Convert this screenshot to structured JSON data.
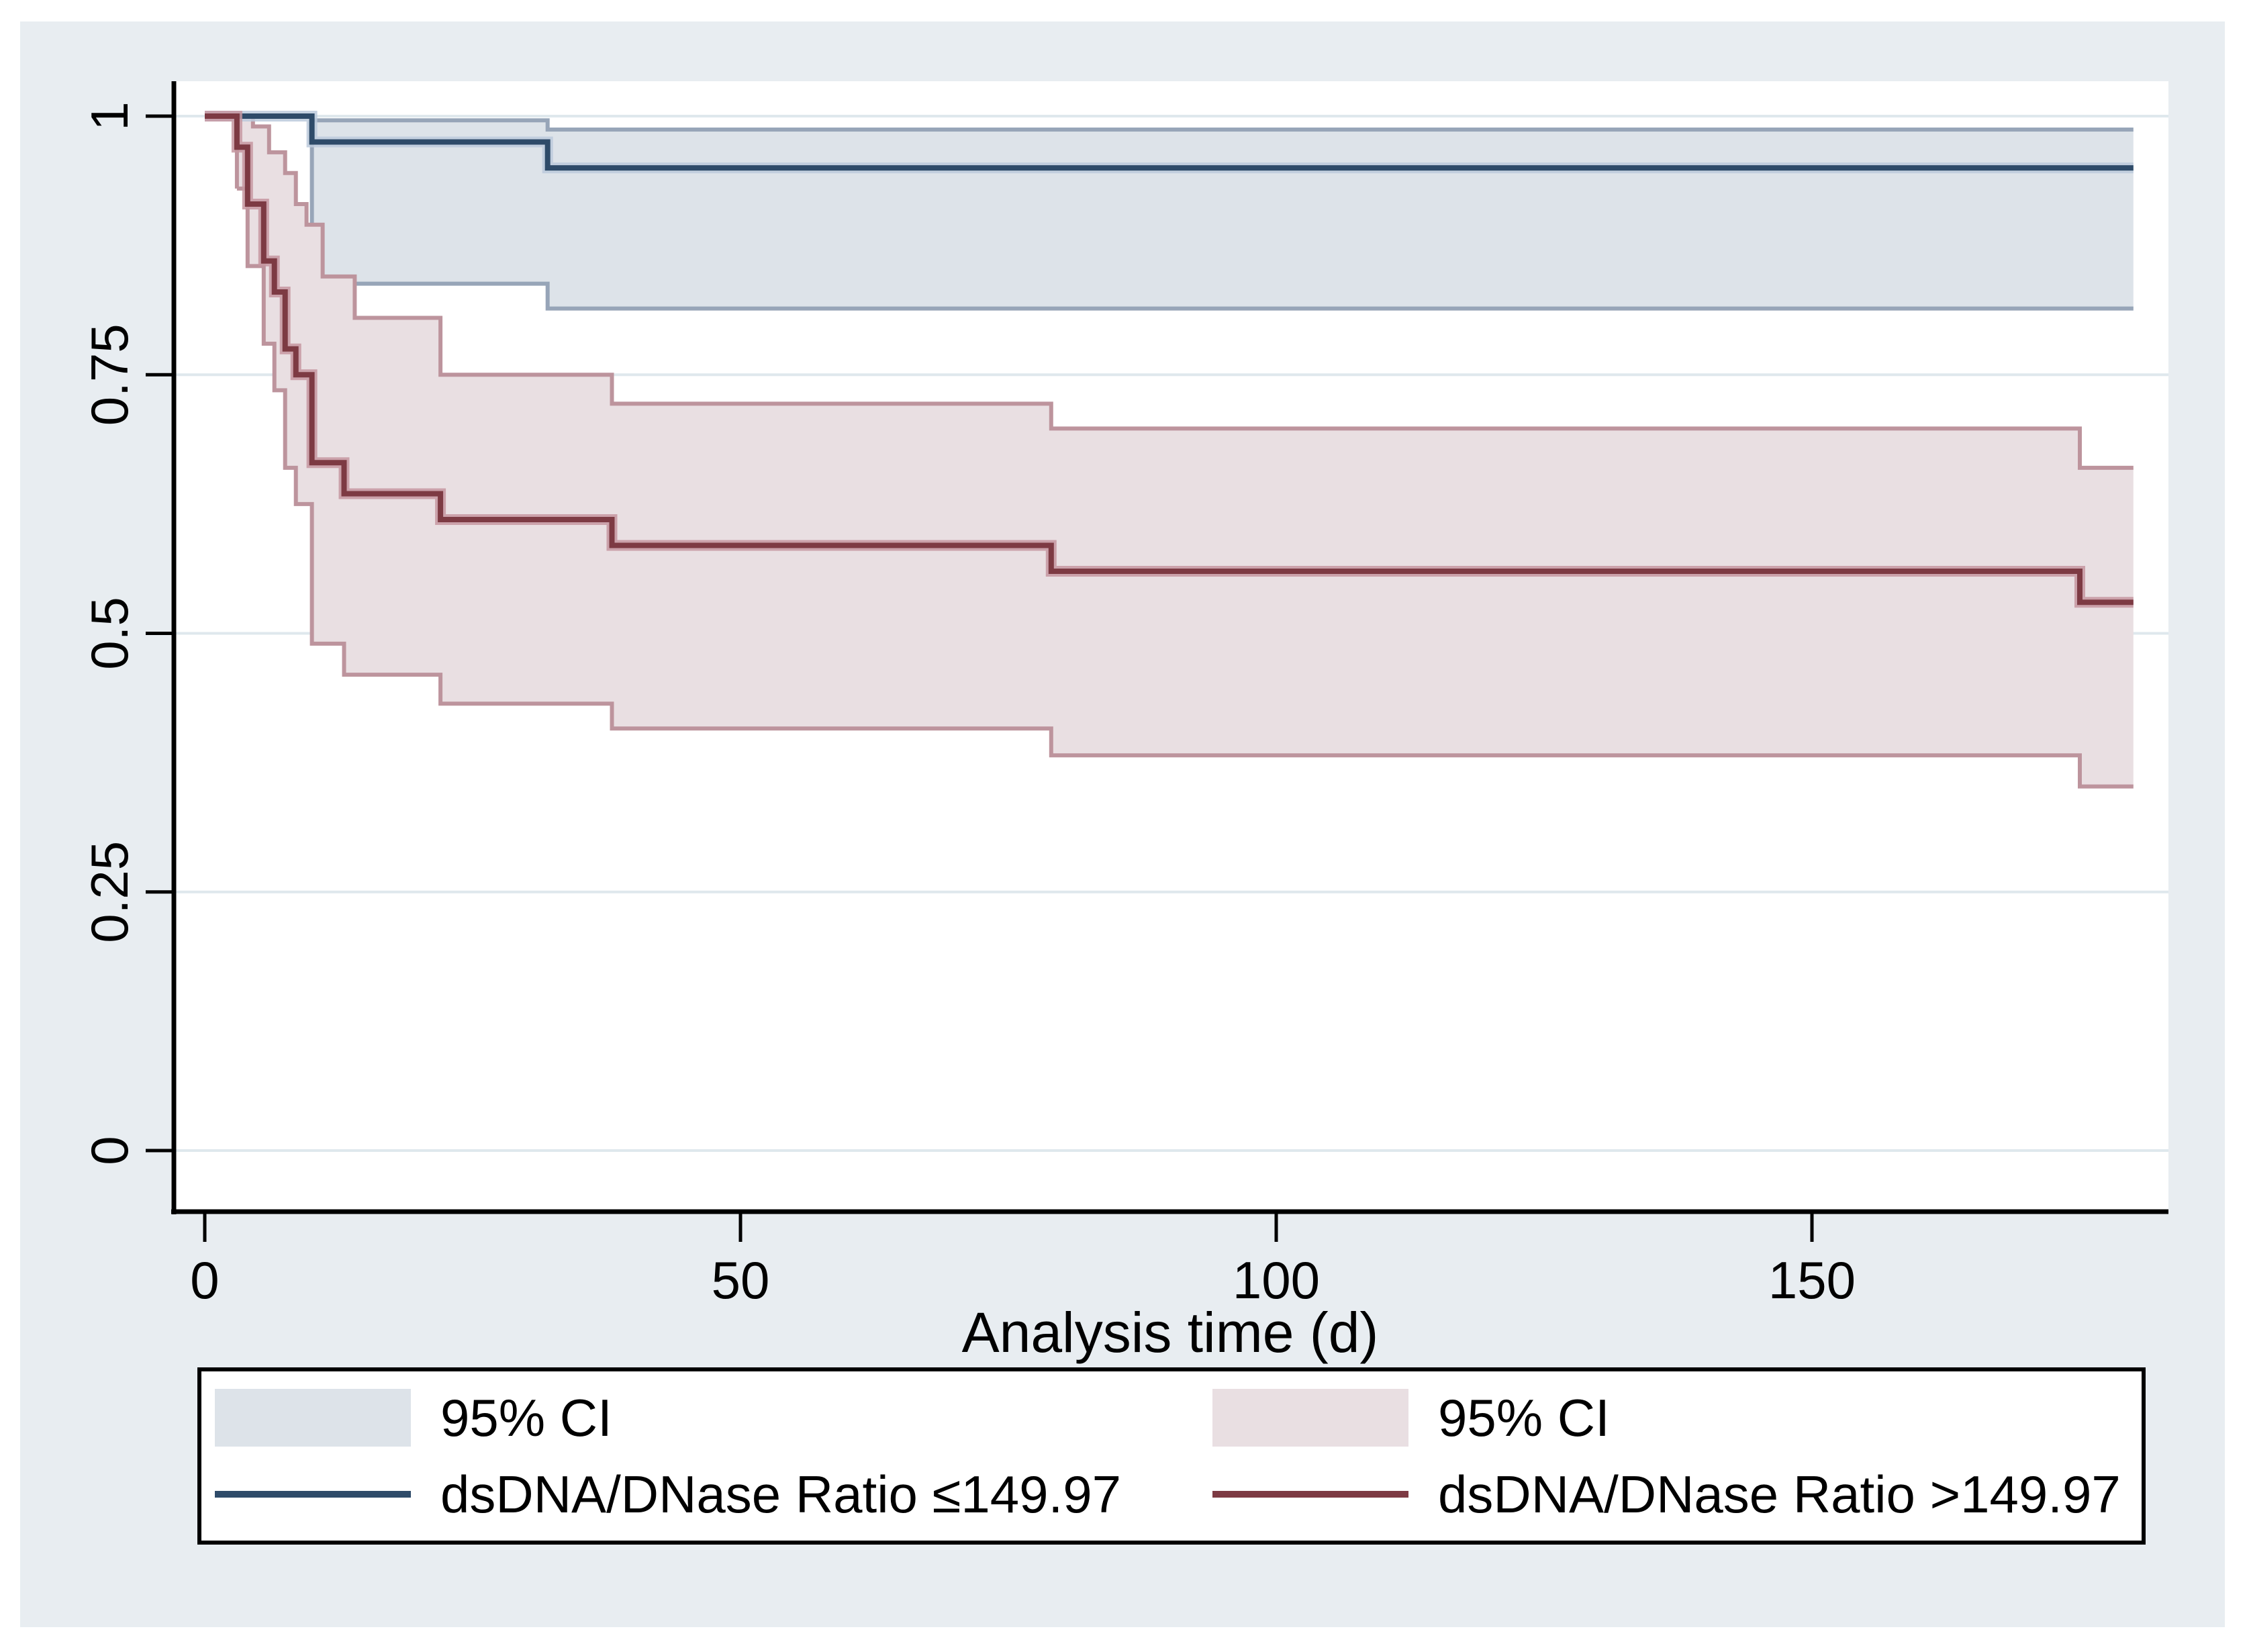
{
  "colors": {
    "page_bg": "#ffffff",
    "panel_bg": "#e8edf1",
    "plot_bg": "#ffffff",
    "grid": "#dfe8ed",
    "axis": "#000000",
    "text": "#000000",
    "legend_border": "#000000",
    "legend_bg": "#ffffff"
  },
  "chart_data": {
    "type": "line",
    "variant": "kaplan-meier-step-with-ci-bands",
    "title": "",
    "xlabel": "Analysis time (d)",
    "ylabel": "",
    "xlim": [
      0,
      183
    ],
    "ylim": [
      0,
      1.06
    ],
    "x_end": 180,
    "xticks": [
      0,
      50,
      100,
      150
    ],
    "xtick_labels": [
      "0",
      "50",
      "100",
      "150"
    ],
    "yticks": [
      0,
      0.25,
      0.5,
      0.75,
      1
    ],
    "ytick_labels": [
      "0",
      "0.25",
      "0.5",
      "0.75",
      "1"
    ],
    "grid": true,
    "legend_position": "bottom",
    "series": [
      {
        "name": "dsDNA/DNase Ratio ≤149.97",
        "color": "#2e4b69",
        "halo": "#bccadc",
        "ci_label": "95% CI",
        "ci_fill": "#dde3e9",
        "ci_edge": "#97a5b8",
        "steps": [
          [
            0,
            1.0
          ],
          [
            10,
            0.975
          ],
          [
            32,
            0.95
          ]
        ],
        "ci_upper": [
          [
            10,
            0.996
          ],
          [
            32,
            0.987
          ]
        ],
        "ci_lower": [
          [
            10,
            0.838
          ],
          [
            32,
            0.814
          ]
        ]
      },
      {
        "name": "dsDNA/DNase Ratio >149.97",
        "color": "#7d3a43",
        "halo": "#c697a0",
        "ci_label": "95% CI",
        "ci_fill": "#e9dfe2",
        "ci_edge": "#bd949d",
        "steps": [
          [
            0,
            1.0
          ],
          [
            3,
            0.97
          ],
          [
            4,
            0.915
          ],
          [
            5.5,
            0.86
          ],
          [
            6.5,
            0.83
          ],
          [
            7.5,
            0.775
          ],
          [
            8.5,
            0.75
          ],
          [
            10,
            0.665
          ],
          [
            13,
            0.635
          ],
          [
            22,
            0.61
          ],
          [
            38,
            0.585
          ],
          [
            79,
            0.56
          ],
          [
            175,
            0.53
          ]
        ],
        "ci_upper": [
          [
            3,
            1.0
          ],
          [
            4.5,
            0.99
          ],
          [
            6,
            0.965
          ],
          [
            7.5,
            0.945
          ],
          [
            8.5,
            0.915
          ],
          [
            9.5,
            0.895
          ],
          [
            11,
            0.845
          ],
          [
            14,
            0.805
          ],
          [
            22,
            0.75
          ],
          [
            38,
            0.722
          ],
          [
            79,
            0.698
          ],
          [
            175,
            0.66
          ]
        ],
        "ci_lower": [
          [
            3,
            0.93
          ],
          [
            4,
            0.855
          ],
          [
            5.5,
            0.78
          ],
          [
            6.5,
            0.735
          ],
          [
            7.5,
            0.66
          ],
          [
            8.5,
            0.625
          ],
          [
            10,
            0.49
          ],
          [
            13,
            0.46
          ],
          [
            22,
            0.432
          ],
          [
            38,
            0.408
          ],
          [
            79,
            0.382
          ],
          [
            175,
            0.352
          ]
        ]
      }
    ]
  },
  "legend": {
    "items": [
      {
        "label": "95% CI",
        "swatch": "area",
        "series": 0
      },
      {
        "label": "95% CI",
        "swatch": "area",
        "series": 1
      },
      {
        "label": "dsDNA/DNase Ratio ≤149.97",
        "swatch": "line",
        "series": 0
      },
      {
        "label": "dsDNA/DNase Ratio >149.97",
        "swatch": "line",
        "series": 1
      }
    ]
  }
}
